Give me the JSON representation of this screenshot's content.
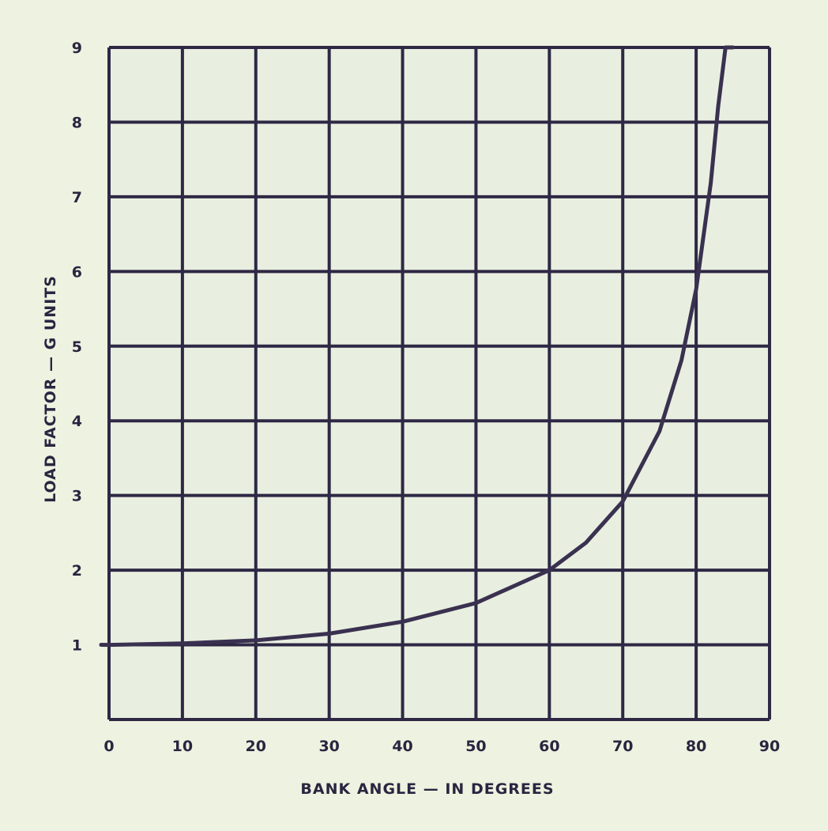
{
  "chart_data": {
    "type": "line",
    "title": "",
    "xlabel": "BANK ANGLE — IN DEGREES",
    "ylabel": "LOAD FACTOR — G UNITS",
    "xlim": [
      0,
      90
    ],
    "ylim": [
      0,
      9
    ],
    "x_ticks": [
      "0",
      "10",
      "20",
      "30",
      "40",
      "50",
      "60",
      "70",
      "80",
      "90"
    ],
    "y_ticks": [
      "1",
      "2",
      "3",
      "4",
      "5",
      "6",
      "7",
      "8",
      "9"
    ],
    "grid": true,
    "colors": {
      "line": "#3a3150",
      "grid": "#2e2845",
      "background": "#eef2e0"
    },
    "series": [
      {
        "x": [
          0,
          10,
          20,
          30,
          40,
          50,
          60,
          65,
          70,
          75,
          78,
          80,
          82,
          83,
          84,
          85
        ],
        "y": [
          1.0,
          1.02,
          1.06,
          1.15,
          1.31,
          1.56,
          2.0,
          2.37,
          2.92,
          3.86,
          4.81,
          5.76,
          7.19,
          8.21,
          9.0,
          9.0
        ]
      }
    ]
  }
}
